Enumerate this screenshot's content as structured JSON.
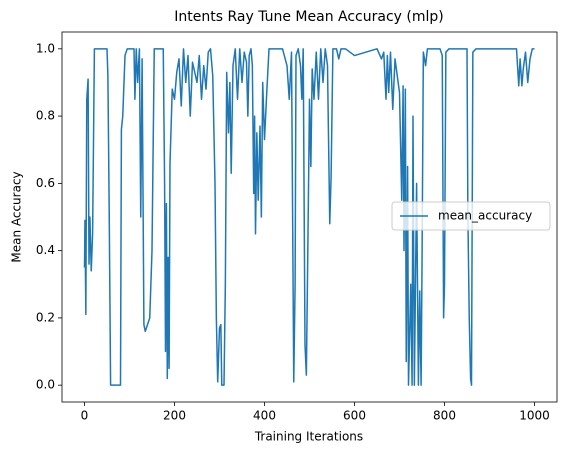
{
  "chart_data": {
    "type": "line",
    "title": "Intents Ray Tune Mean Accuracy (mlp)",
    "xlabel": "Training Iterations",
    "ylabel": "Mean Accuracy",
    "x": [
      0,
      1,
      3,
      5,
      8,
      10,
      12,
      15,
      18,
      22,
      30,
      40,
      50,
      52,
      55,
      58,
      60,
      70,
      80,
      82,
      85,
      90,
      95,
      100,
      110,
      112,
      115,
      118,
      122,
      125,
      128,
      132,
      135,
      140,
      145,
      150,
      155,
      160,
      170,
      175,
      178,
      180,
      182,
      184,
      186,
      188,
      190,
      195,
      200,
      205,
      210,
      215,
      220,
      225,
      230,
      235,
      240,
      245,
      250,
      255,
      260,
      265,
      270,
      275,
      280,
      285,
      290,
      293,
      296,
      300,
      303,
      305,
      310,
      313,
      316,
      320,
      323,
      326,
      330,
      335,
      340,
      345,
      350,
      355,
      360,
      363,
      366,
      370,
      373,
      376,
      378,
      380,
      383,
      386,
      390,
      393,
      396,
      400,
      405,
      410,
      420,
      430,
      440,
      450,
      455,
      460,
      465,
      468,
      470,
      475,
      480,
      483,
      486,
      490,
      493,
      496,
      500,
      503,
      506,
      510,
      515,
      520,
      525,
      530,
      535,
      540,
      545,
      548,
      552,
      560,
      565,
      570,
      580,
      600,
      625,
      650,
      660,
      665,
      670,
      673,
      676,
      680,
      685,
      690,
      695,
      700,
      705,
      708,
      710,
      713,
      715,
      718,
      720,
      725,
      728,
      730,
      733,
      738,
      742,
      745,
      748,
      750,
      753,
      758,
      762,
      770,
      790,
      795,
      798,
      800,
      803,
      810,
      820,
      850,
      852,
      855,
      858,
      860,
      863,
      870,
      960,
      965,
      968,
      972,
      975,
      980,
      985,
      990,
      995,
      1000
    ],
    "series": [
      {
        "name": "mean_accuracy",
        "color": "#1f77b4",
        "values": [
          0.35,
          0.49,
          0.21,
          0.85,
          0.91,
          0.36,
          0.5,
          0.34,
          0.45,
          1.0,
          1.0,
          1.0,
          1.0,
          0.92,
          0.5,
          0.0,
          0.0,
          0.0,
          0.0,
          0.76,
          0.8,
          0.98,
          1.0,
          1.0,
          1.0,
          0.85,
          1.0,
          0.9,
          1.0,
          0.5,
          0.97,
          0.18,
          0.16,
          0.18,
          0.2,
          0.4,
          1.0,
          1.0,
          1.0,
          1.0,
          0.6,
          0.1,
          0.54,
          0.02,
          0.38,
          0.05,
          0.66,
          0.88,
          0.85,
          0.93,
          0.97,
          0.83,
          1.0,
          0.9,
          0.98,
          0.8,
          0.96,
          0.93,
          0.9,
          0.98,
          0.85,
          0.95,
          0.88,
          0.99,
          1.0,
          0.92,
          0.6,
          0.2,
          0.01,
          0.17,
          0.18,
          0.0,
          0.0,
          0.3,
          0.93,
          0.75,
          0.9,
          0.63,
          0.95,
          1.0,
          0.85,
          1.0,
          0.9,
          0.99,
          0.96,
          0.8,
          0.98,
          1.0,
          0.95,
          0.57,
          0.8,
          0.45,
          0.75,
          0.55,
          0.77,
          0.5,
          0.9,
          0.73,
          0.87,
          1.0,
          1.0,
          1.0,
          1.0,
          0.95,
          0.85,
          0.99,
          0.01,
          0.3,
          0.98,
          1.0,
          0.95,
          0.85,
          1.0,
          0.12,
          0.03,
          0.37,
          0.85,
          0.65,
          0.94,
          0.85,
          0.99,
          0.85,
          1.0,
          0.9,
          1.0,
          0.95,
          0.48,
          0.62,
          1.0,
          1.0,
          0.97,
          1.0,
          1.0,
          0.98,
          0.99,
          1.0,
          0.97,
          0.99,
          0.85,
          0.98,
          0.87,
          0.99,
          0.82,
          0.97,
          0.92,
          0.87,
          0.55,
          0.89,
          0.4,
          0.88,
          0.07,
          0.65,
          0.0,
          0.3,
          0.0,
          0.8,
          0.0,
          0.6,
          0.0,
          0.28,
          0.0,
          0.35,
          0.99,
          0.95,
          1.0,
          1.0,
          1.0,
          0.98,
          0.2,
          0.3,
          0.99,
          1.0,
          1.0,
          1.0,
          0.5,
          0.2,
          0.02,
          0.0,
          0.99,
          1.0,
          1.0,
          0.89,
          0.97,
          0.89,
          0.94,
          0.99,
          0.9,
          0.97,
          1.0,
          1.0
        ]
      }
    ],
    "xlim": [
      -50,
      1050
    ],
    "ylim": [
      -0.05,
      1.05
    ],
    "xticks": [
      0,
      200,
      400,
      600,
      800,
      1000
    ],
    "yticks": [
      {
        "value": 0,
        "label": "0.0"
      },
      {
        "value": 0.2,
        "label": "0.2"
      },
      {
        "value": 0.4,
        "label": "0.4"
      },
      {
        "value": 0.6,
        "label": "0.6"
      },
      {
        "value": 0.8,
        "label": "0.8"
      },
      {
        "value": 1,
        "label": "1.0"
      }
    ],
    "legend": "center right"
  }
}
